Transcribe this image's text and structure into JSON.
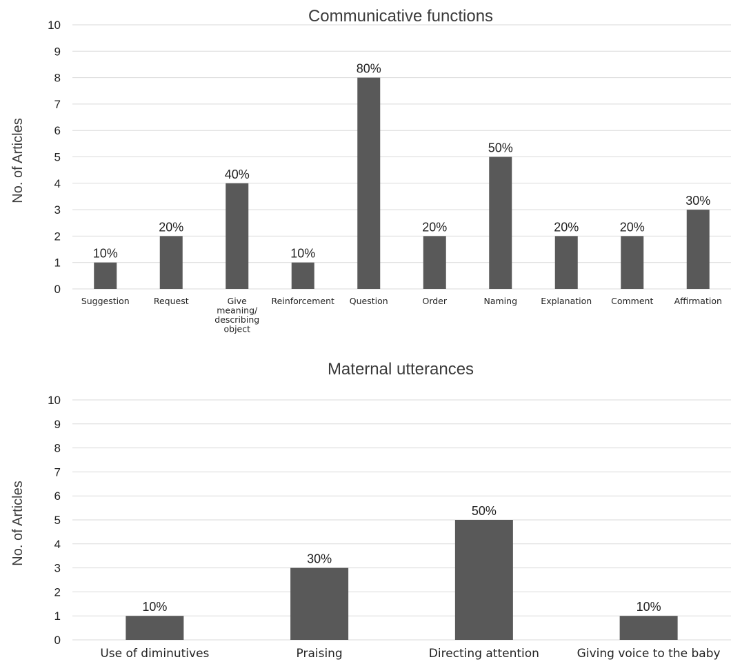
{
  "chart_data": [
    {
      "type": "bar",
      "title": "Communicative functions",
      "ylabel": "No. of Articles",
      "xlabel": "",
      "ylim": [
        0,
        10
      ],
      "grid": true,
      "categories": [
        "Suggestion",
        "Request",
        "Give meaning/ describing object",
        "Reinforcement",
        "Question",
        "Order",
        "Naming",
        "Explanation",
        "Comment",
        "Affirmation"
      ],
      "category_lines": [
        [
          "Suggestion"
        ],
        [
          "Request"
        ],
        [
          "Give",
          "meaning/",
          "describing",
          "object"
        ],
        [
          "Reinforcement"
        ],
        [
          "Question"
        ],
        [
          "Order"
        ],
        [
          "Naming"
        ],
        [
          "Explanation"
        ],
        [
          "Comment"
        ],
        [
          "Affirmation"
        ]
      ],
      "values": [
        1,
        2,
        4,
        1,
        8,
        2,
        5,
        2,
        2,
        3
      ],
      "data_labels": [
        "10%",
        "20%",
        "40%",
        "10%",
        "80%",
        "20%",
        "50%",
        "20%",
        "20%",
        "30%"
      ],
      "bar_color": "#595959"
    },
    {
      "type": "bar",
      "title": "Maternal utterances",
      "ylabel": "No. of Articles",
      "xlabel": "",
      "ylim": [
        0,
        10
      ],
      "grid": true,
      "categories": [
        "Use of diminutives",
        "Praising",
        "Directing attention",
        "Giving voice to the baby"
      ],
      "category_lines": [
        [
          "Use of diminutives"
        ],
        [
          "Praising"
        ],
        [
          "Directing attention"
        ],
        [
          "Giving voice to the baby"
        ]
      ],
      "values": [
        1,
        3,
        5,
        1
      ],
      "data_labels": [
        "10%",
        "30%",
        "50%",
        "10%"
      ],
      "bar_color": "#595959"
    }
  ]
}
